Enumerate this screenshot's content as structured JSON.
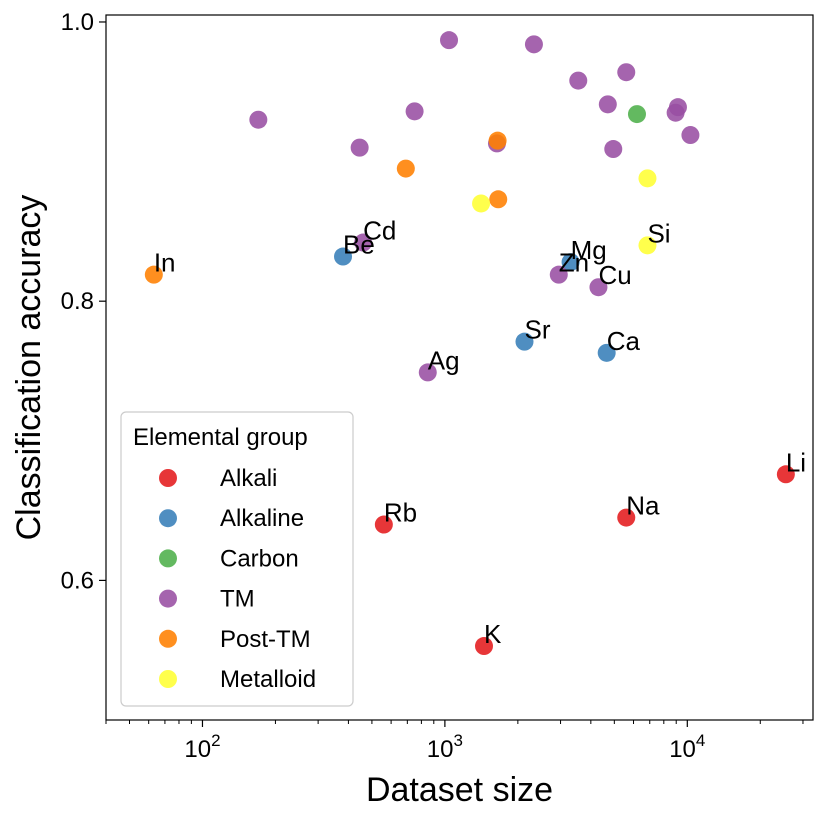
{
  "chart_data": {
    "type": "scatter",
    "xlabel": "Dataset size",
    "ylabel": "Classification accuracy",
    "xscale": "log",
    "xlim": [
      40,
      33000
    ],
    "ylim": [
      0.5,
      1.005
    ],
    "grid": false,
    "x_ticks": [
      {
        "value": 100,
        "base": "10",
        "exp": "2"
      },
      {
        "value": 1000,
        "base": "10",
        "exp": "3"
      },
      {
        "value": 10000,
        "base": "10",
        "exp": "4"
      }
    ],
    "y_ticks": [
      {
        "value": 0.6,
        "label": "0.6"
      },
      {
        "value": 0.8,
        "label": "0.8"
      },
      {
        "value": 1.0,
        "label": "1.0"
      }
    ],
    "legend": {
      "title": "Elemental group",
      "placement": "lower-left",
      "entries": [
        {
          "group": "Alkali",
          "label": "Alkali"
        },
        {
          "group": "Alkaline",
          "label": "Alkaline"
        },
        {
          "group": "Carbon",
          "label": "Carbon"
        },
        {
          "group": "TM",
          "label": "TM"
        },
        {
          "group": "Post-TM",
          "label": "Post-TM"
        },
        {
          "group": "Metalloid",
          "label": "Metalloid"
        }
      ]
    },
    "colors": {
      "Alkali": "#e41a1c",
      "Alkaline": "#377eb8",
      "Carbon": "#4daf4a",
      "TM": "#984ea3",
      "Post-TM": "#ff7f00",
      "Metalloid": "#ffff33"
    },
    "points": [
      {
        "x": 25500,
        "y": 0.676,
        "group": "Alkali",
        "label": "Li"
      },
      {
        "x": 5600,
        "y": 0.645,
        "group": "Alkali",
        "label": "Na"
      },
      {
        "x": 1450,
        "y": 0.553,
        "group": "Alkali",
        "label": "K"
      },
      {
        "x": 560,
        "y": 0.64,
        "group": "Alkali",
        "label": "Rb"
      },
      {
        "x": 380,
        "y": 0.832,
        "group": "Alkaline",
        "label": "Be"
      },
      {
        "x": 3300,
        "y": 0.828,
        "group": "Alkaline",
        "label": "Mg"
      },
      {
        "x": 4650,
        "y": 0.763,
        "group": "Alkaline",
        "label": "Ca"
      },
      {
        "x": 2130,
        "y": 0.771,
        "group": "Alkaline",
        "label": "Sr"
      },
      {
        "x": 6200,
        "y": 0.934,
        "group": "Carbon",
        "label": ""
      },
      {
        "x": 460,
        "y": 0.842,
        "group": "TM",
        "label": "Cd"
      },
      {
        "x": 850,
        "y": 0.749,
        "group": "TM",
        "label": "Ag"
      },
      {
        "x": 2950,
        "y": 0.819,
        "group": "TM",
        "label": "Zn"
      },
      {
        "x": 4300,
        "y": 0.81,
        "group": "TM",
        "label": "Cu"
      },
      {
        "x": 170,
        "y": 0.93,
        "group": "TM",
        "label": ""
      },
      {
        "x": 445,
        "y": 0.91,
        "group": "TM",
        "label": ""
      },
      {
        "x": 750,
        "y": 0.936,
        "group": "TM",
        "label": ""
      },
      {
        "x": 1040,
        "y": 0.987,
        "group": "TM",
        "label": ""
      },
      {
        "x": 1640,
        "y": 0.913,
        "group": "TM",
        "label": ""
      },
      {
        "x": 2330,
        "y": 0.984,
        "group": "TM",
        "label": ""
      },
      {
        "x": 3550,
        "y": 0.958,
        "group": "TM",
        "label": ""
      },
      {
        "x": 4700,
        "y": 0.941,
        "group": "TM",
        "label": ""
      },
      {
        "x": 4950,
        "y": 0.909,
        "group": "TM",
        "label": ""
      },
      {
        "x": 5600,
        "y": 0.964,
        "group": "TM",
        "label": ""
      },
      {
        "x": 8950,
        "y": 0.935,
        "group": "TM",
        "label": ""
      },
      {
        "x": 9150,
        "y": 0.939,
        "group": "TM",
        "label": ""
      },
      {
        "x": 10300,
        "y": 0.919,
        "group": "TM",
        "label": ""
      },
      {
        "x": 63,
        "y": 0.819,
        "group": "Post-TM",
        "label": "In"
      },
      {
        "x": 690,
        "y": 0.895,
        "group": "Post-TM",
        "label": ""
      },
      {
        "x": 1650,
        "y": 0.915,
        "group": "Post-TM",
        "label": ""
      },
      {
        "x": 1660,
        "y": 0.873,
        "group": "Post-TM",
        "label": ""
      },
      {
        "x": 6850,
        "y": 0.84,
        "group": "Metalloid",
        "label": "Si"
      },
      {
        "x": 1410,
        "y": 0.87,
        "group": "Metalloid",
        "label": ""
      },
      {
        "x": 6850,
        "y": 0.888,
        "group": "Metalloid",
        "label": ""
      }
    ]
  }
}
